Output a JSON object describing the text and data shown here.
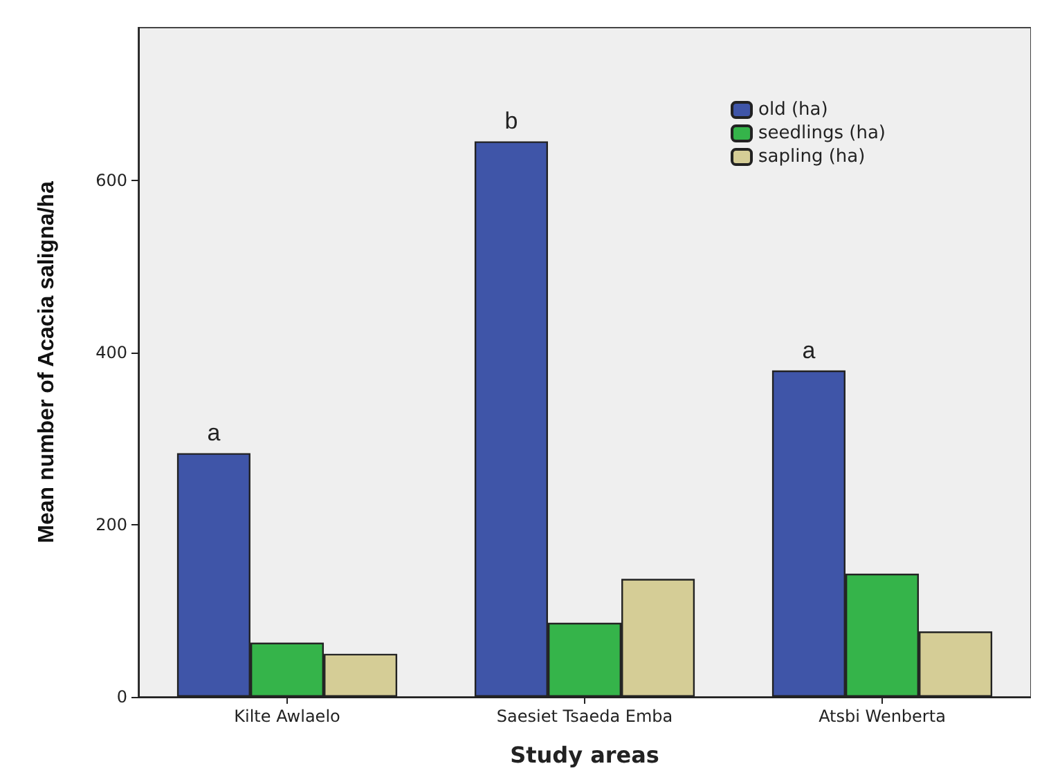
{
  "chart_data": {
    "type": "bar",
    "xlabel": "Study areas",
    "ylabel": "Mean number of Acacia saligna/ha",
    "categories": [
      "Kilte Awlaelo",
      "Saesiet Tsaeda Emba",
      "Atsbi Wenberta"
    ],
    "series": [
      {
        "name": "old (ha)",
        "color": "#3f55a8",
        "values": [
          283,
          645,
          379
        ]
      },
      {
        "name": "seedlings (ha)",
        "color": "#35b44a",
        "values": [
          63,
          86,
          143
        ]
      },
      {
        "name": "sapling (ha)",
        "color": "#d5cd96",
        "values": [
          50,
          137,
          76
        ]
      }
    ],
    "ylim": [
      0,
      777
    ],
    "yticks": [
      0,
      200,
      400,
      600
    ],
    "grid": false,
    "legend": "top right",
    "annotations": [
      "a",
      "b",
      "a"
    ]
  }
}
